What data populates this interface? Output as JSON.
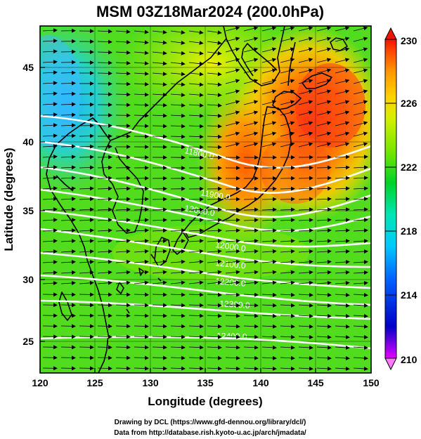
{
  "title": "MSM 03Z18Mar2024 (200.0hPa)",
  "xlabel": "Longitude (degrees)",
  "ylabel": "Latitude  (degrees)",
  "x_ticks": [
    "120",
    "125",
    "130",
    "135",
    "140",
    "145",
    "150"
  ],
  "y_ticks": [
    "25",
    "30",
    "35",
    "40",
    "45"
  ],
  "colorbar": {
    "ticks": [
      "230",
      "226",
      "222",
      "218",
      "214",
      "210"
    ],
    "min": 210,
    "max": 230,
    "palette": [
      "#e200ff",
      "#0000c8",
      "#0064ff",
      "#00c8ff",
      "#00e6b4",
      "#00d228",
      "#78e600",
      "#d2f000",
      "#ffd200",
      "#ff9600",
      "#ff4b00",
      "#f01400"
    ]
  },
  "map": {
    "lon_range": [
      120,
      150
    ],
    "lat_range": [
      22.5,
      47.5
    ],
    "contour_labels": [
      "11800.0",
      "11900.0",
      "12000.0",
      "12100.0",
      "12200.0",
      "12300.0",
      "12400.0",
      "11700.0"
    ]
  },
  "credits": {
    "line1": "Drawing by DCL (https://www.gfd-dennou.org/library/dcl/)",
    "line2": "Data from http://database.rish.kyoto-u.ac.jp/arch/jmadata/"
  }
}
